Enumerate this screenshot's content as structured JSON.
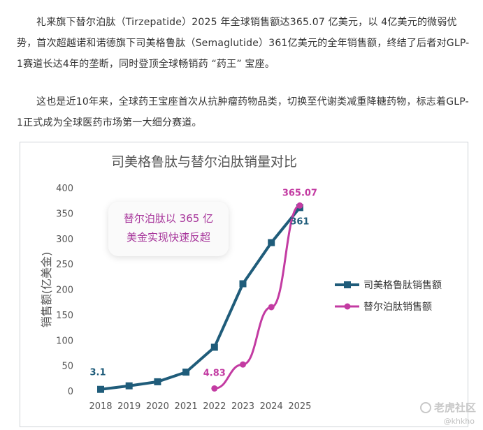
{
  "article": {
    "paragraph1": "礼来旗下替尔泊肽（Tirzepatide）2025 年全球销售额达365.07 亿美元，以 4亿美元的微弱优势，首次超越诺和诺德旗下司美格鲁肽（Semaglutide）361亿美元的全年销售额，终结了后者对GLP-1赛道长达4年的垄断，同时登顶全球畅销药 “药王” 宝座。",
    "paragraph2": "这也是近10年来，全球药王宝座首次从抗肿瘤药物品类，切换至代谢类减重降糖药物，标志着GLP-1正式成为全球医药市场第一大细分赛道。"
  },
  "chart_data": {
    "type": "line",
    "title": "司美格鲁肽与替尔泊肽销量对比",
    "ylabel": "销售额(亿美金)",
    "xlabel": "",
    "x": [
      "2018",
      "2019",
      "2020",
      "2021",
      "2022",
      "2023",
      "2024",
      "2025"
    ],
    "ylim": [
      0,
      400
    ],
    "yticks": [
      "0",
      "50",
      "100",
      "150",
      "200",
      "250",
      "300",
      "350",
      "400"
    ],
    "grid": false,
    "legend_position": "right",
    "series": [
      {
        "name": "司美格鲁肽销售额",
        "color": "#1f5c7a",
        "marker": "square",
        "values": [
          3.1,
          10,
          18,
          37,
          86,
          211,
          292,
          361
        ]
      },
      {
        "name": "替尔泊肽销售额",
        "color": "#c33ba2",
        "marker": "circle",
        "values": [
          null,
          null,
          null,
          null,
          4.83,
          52,
          165,
          365.07
        ]
      }
    ],
    "data_labels": [
      {
        "series": 0,
        "index": 0,
        "text": "3.1"
      },
      {
        "series": 0,
        "index": 7,
        "text": "361"
      },
      {
        "series": 1,
        "index": 4,
        "text": "4.83"
      },
      {
        "series": 1,
        "index": 7,
        "text": "365.07"
      }
    ],
    "annotation": {
      "line1": "替尔泊肽以 365 亿",
      "line2": "美金实现快速反超"
    }
  },
  "watermark": {
    "logo_text": "老虎社区",
    "credit": "@khkho"
  }
}
